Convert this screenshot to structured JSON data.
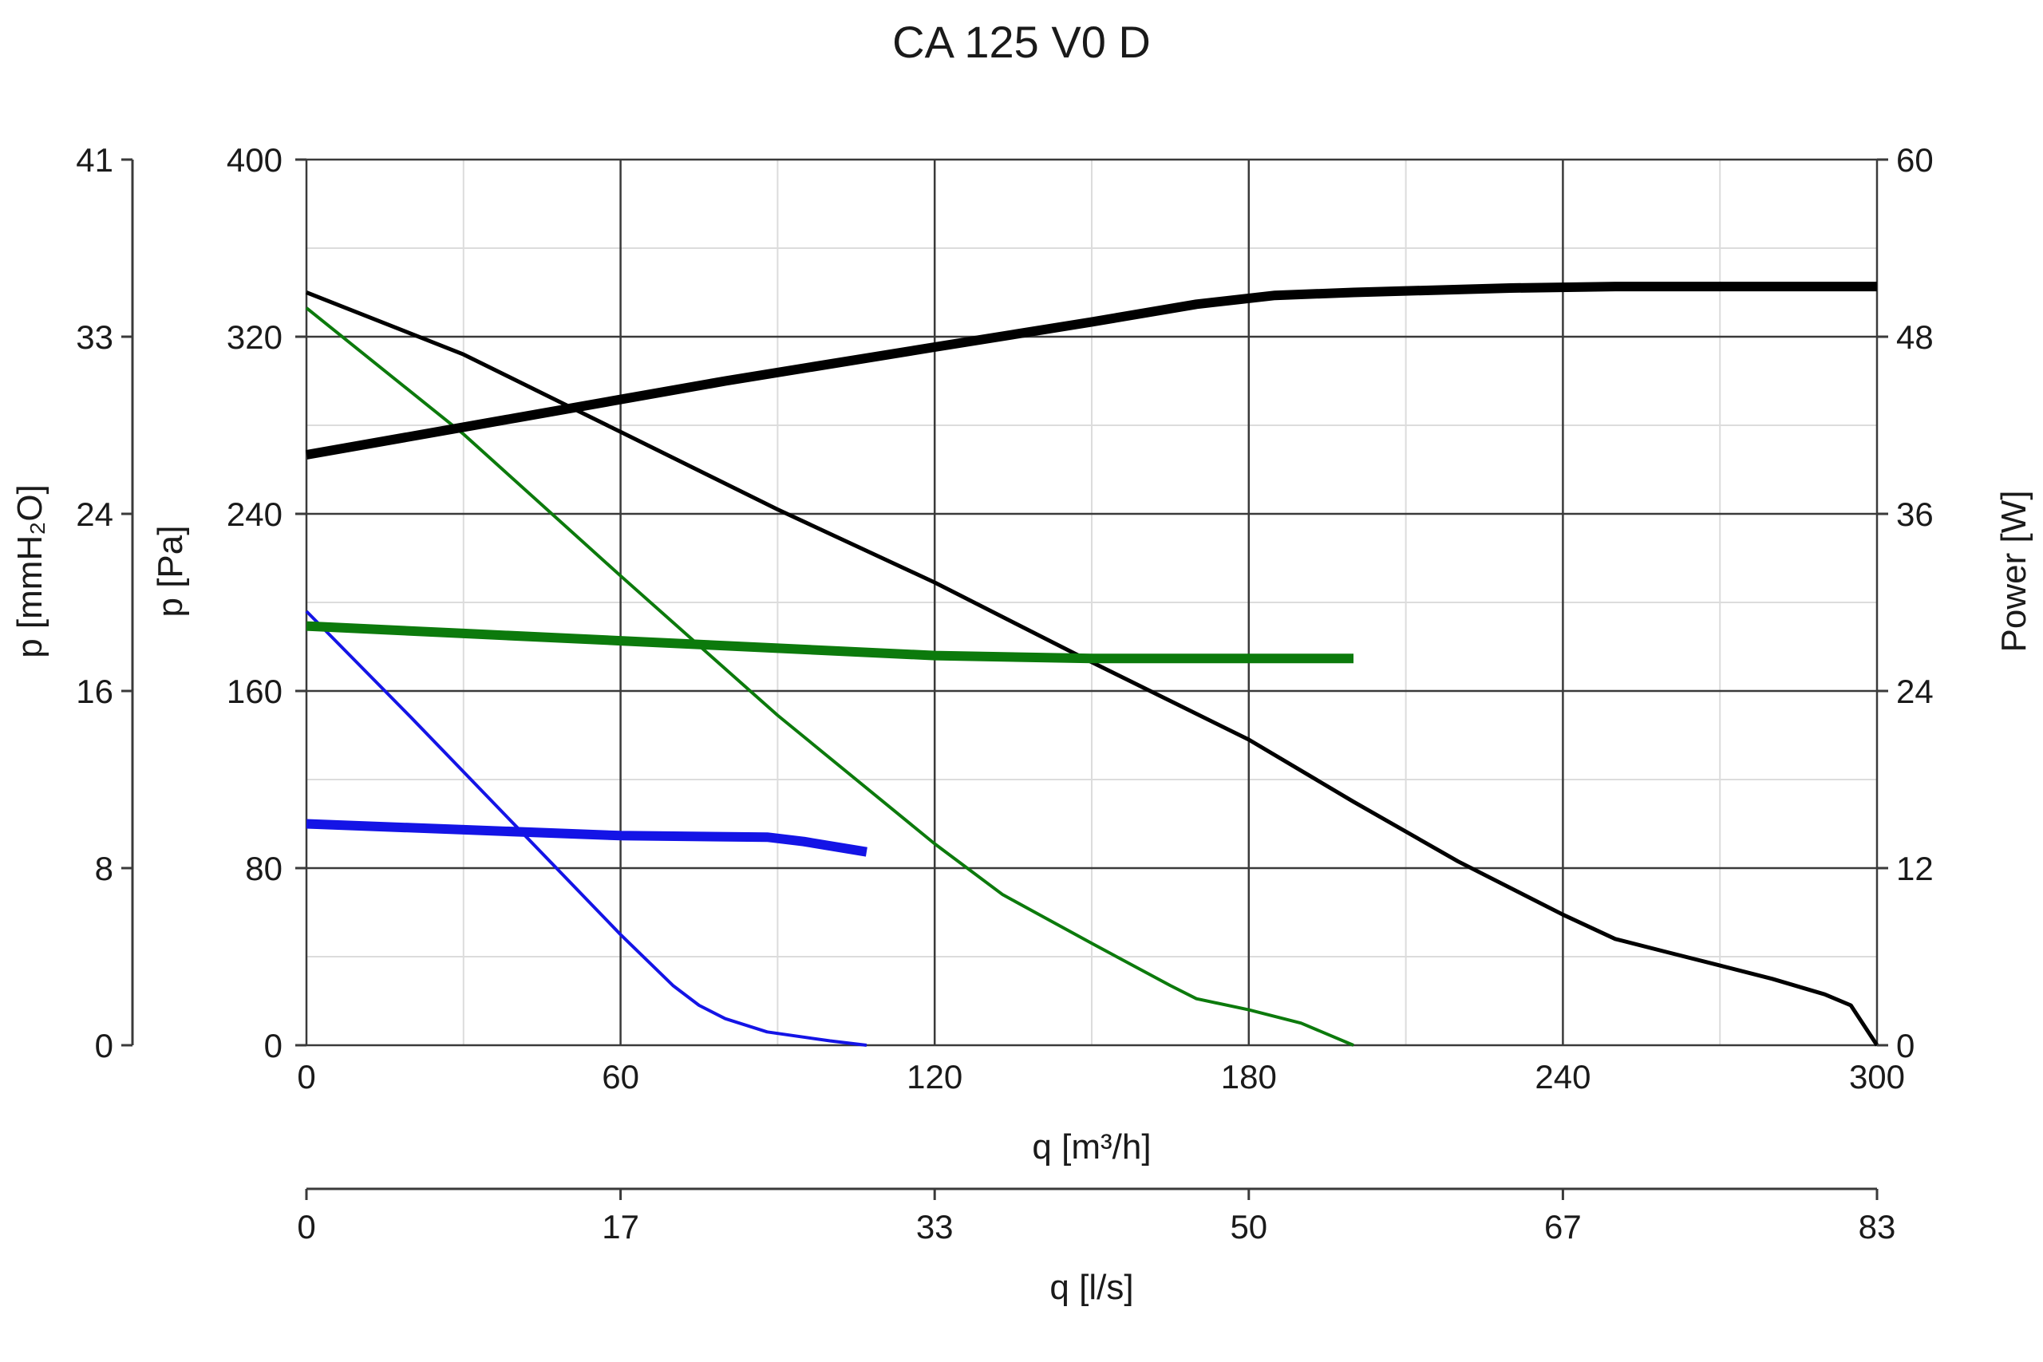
{
  "chart_data": {
    "type": "line",
    "title": "CA 125 V0 D",
    "xlabel": "q [m³/h]",
    "xlim": [
      0,
      300
    ],
    "x_ticks": [
      "0",
      "60",
      "120",
      "180",
      "240",
      "300"
    ],
    "x_secondary": {
      "label": "q [l/s]",
      "ticks": [
        "0",
        "17",
        "33",
        "50",
        "67",
        "83"
      ]
    },
    "ylabel": "p [Pa]",
    "ylim": [
      0,
      400
    ],
    "y_ticks": [
      "0",
      "80",
      "160",
      "240",
      "320",
      "400"
    ],
    "y_secondary_left": {
      "label": "p [mmH₂O]",
      "ticks": [
        "0",
        "8",
        "16",
        "24",
        "33",
        "41"
      ]
    },
    "y_right": {
      "label": "Power [W]",
      "lim": [
        0,
        60
      ],
      "ticks": [
        "0",
        "12",
        "24",
        "36",
        "48",
        "60"
      ]
    },
    "grid": true,
    "colors": {
      "black": "#000000",
      "green": "#0c7a0c",
      "blue": "#1414e6"
    },
    "series": [
      {
        "kind": "pressure",
        "axis": "left",
        "color": "#000000",
        "width": 5,
        "points": [
          [
            0,
            340
          ],
          [
            30,
            312
          ],
          [
            60,
            277
          ],
          [
            90,
            242
          ],
          [
            120,
            209
          ],
          [
            150,
            173
          ],
          [
            180,
            138
          ],
          [
            200,
            110
          ],
          [
            220,
            83
          ],
          [
            240,
            59
          ],
          [
            250,
            48
          ],
          [
            260,
            42
          ],
          [
            270,
            36
          ],
          [
            280,
            30
          ],
          [
            290,
            23
          ],
          [
            295,
            18
          ],
          [
            300,
            0
          ]
        ]
      },
      {
        "kind": "pressure",
        "axis": "left",
        "color": "#0c7a0c",
        "width": 4,
        "points": [
          [
            0,
            333
          ],
          [
            30,
            276
          ],
          [
            60,
            212
          ],
          [
            90,
            149
          ],
          [
            120,
            91
          ],
          [
            133,
            68
          ],
          [
            150,
            46
          ],
          [
            165,
            27
          ],
          [
            170,
            21
          ],
          [
            180,
            16
          ],
          [
            190,
            10
          ],
          [
            200,
            0
          ]
        ]
      },
      {
        "kind": "pressure",
        "axis": "left",
        "color": "#1414e6",
        "width": 4,
        "points": [
          [
            0,
            196
          ],
          [
            20,
            148
          ],
          [
            40,
            99
          ],
          [
            60,
            50
          ],
          [
            70,
            27
          ],
          [
            75,
            18
          ],
          [
            80,
            12
          ],
          [
            88,
            6
          ],
          [
            100,
            2
          ],
          [
            107,
            0
          ]
        ]
      },
      {
        "kind": "power",
        "axis": "right",
        "color": "#000000",
        "width": 12,
        "points": [
          [
            0,
            40
          ],
          [
            40,
            42.5
          ],
          [
            80,
            45
          ],
          [
            120,
            47.3
          ],
          [
            150,
            49
          ],
          [
            170,
            50.2
          ],
          [
            185,
            50.8
          ],
          [
            200,
            51
          ],
          [
            230,
            51.3
          ],
          [
            250,
            51.4
          ],
          [
            300,
            51.4
          ]
        ]
      },
      {
        "kind": "power",
        "axis": "right",
        "color": "#0c7a0c",
        "width": 12,
        "points": [
          [
            0,
            28.4
          ],
          [
            30,
            27.9
          ],
          [
            60,
            27.4
          ],
          [
            90,
            26.9
          ],
          [
            120,
            26.4
          ],
          [
            150,
            26.2
          ],
          [
            200,
            26.2
          ]
        ]
      },
      {
        "kind": "power",
        "axis": "right",
        "color": "#1414e6",
        "width": 12,
        "points": [
          [
            0,
            15
          ],
          [
            30,
            14.6
          ],
          [
            60,
            14.2
          ],
          [
            88,
            14.1
          ],
          [
            95,
            13.8
          ],
          [
            107,
            13.1
          ]
        ]
      }
    ]
  }
}
